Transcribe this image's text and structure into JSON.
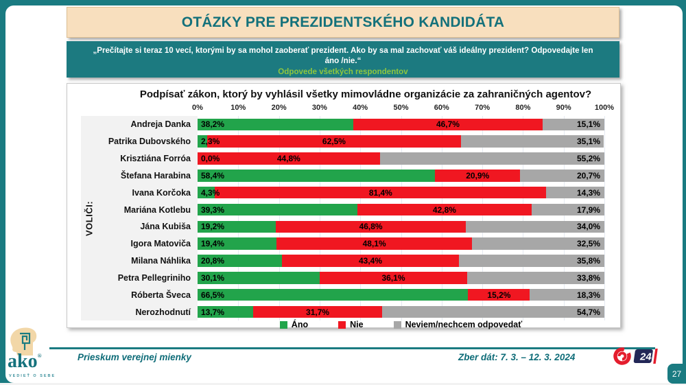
{
  "page": {
    "number": "27"
  },
  "header": {
    "title": "OTÁZKY PRE PREZIDENTSKÉHO KANDIDÁTA",
    "quote": "„Prečítajte si teraz 10 vecí, ktorými by sa mohol zaoberať prezident. Ako by sa mal zachovať váš ideálny prezident? Odpovedajte len áno /nie.“",
    "respondents_note": "Odpovede všetkých respondentov"
  },
  "chart_data": {
    "type": "bar",
    "orientation": "horizontal-stacked",
    "title": "Podpísať zákon, ktorý by vyhlásil všetky mimovládne organizácie za zahraničných agentov?",
    "group_axis_label": "VOLIČI:",
    "x_ticks": [
      "0%",
      "10%",
      "20%",
      "30%",
      "40%",
      "50%",
      "60%",
      "70%",
      "80%",
      "90%",
      "100%"
    ],
    "xlim": [
      0,
      100
    ],
    "unit": "%",
    "decimal_separator": ",",
    "legend_position": "bottom",
    "grid": true,
    "categories": [
      "Andreja Danka",
      "Patrika Dubovského",
      "Krisztiána Forróa",
      "Štefana Harabina",
      "Ivana Korčoka",
      "Mariána Kotlebu",
      "Jána Kubiša",
      "Igora Matoviča",
      "Milana Náhlika",
      "Petra Pellegriniho",
      "Róberta Šveca",
      "Nerozhodnutí"
    ],
    "series": [
      {
        "name": "Áno",
        "color": "#22A44B",
        "values": [
          38.2,
          2.3,
          0.0,
          58.4,
          4.3,
          39.3,
          19.2,
          19.4,
          20.8,
          30.1,
          66.5,
          13.7
        ]
      },
      {
        "name": "Nie",
        "color": "#F01721",
        "values": [
          46.7,
          62.5,
          44.8,
          20.9,
          81.4,
          42.8,
          46.8,
          48.1,
          43.4,
          36.1,
          15.2,
          31.7
        ]
      },
      {
        "name": "Neviem/nechcem odpovedať",
        "color": "#A7A7A7",
        "values": [
          15.1,
          35.1,
          55.2,
          20.7,
          14.3,
          17.9,
          34.0,
          32.5,
          35.8,
          33.8,
          18.3,
          54.7
        ]
      }
    ]
  },
  "footer": {
    "agency_logo": {
      "name": "ako",
      "tagline": "VEDIEŤ O SEBE"
    },
    "left_text": "Prieskum verejnej mienky",
    "right_text": "Zber dát: 7. 3. – 12. 3. 2024",
    "tv_logo": {
      "number": "24"
    }
  },
  "colors": {
    "frame_teal": "#1A7B81",
    "title_bg": "#F8DFBE",
    "title_text": "#14717B",
    "subtitle_bg": "#1C7A80",
    "subtitle_note_green": "#8EC63F",
    "bar_yes_green": "#22A44B",
    "bar_no_red": "#F01721",
    "bar_dk_gray": "#A7A7A7",
    "label_panel_bg": "#F2F2F2",
    "joj_red": "#E41D2D",
    "joj_navy": "#232757"
  }
}
